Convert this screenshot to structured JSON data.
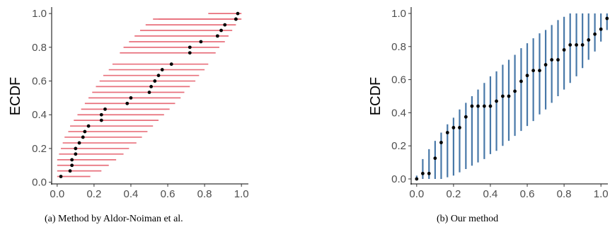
{
  "chart_data": [
    {
      "type": "scatter",
      "variant": "horizontal-intervals",
      "caption": "(a) Method by Aldor-Noiman et al.",
      "xlabel": "",
      "ylabel": "ECDF",
      "xlim": [
        -0.03,
        1.03
      ],
      "ylim": [
        -0.01,
        1.03
      ],
      "xticks": [
        0.0,
        0.2,
        0.4,
        0.6,
        0.8,
        1.0
      ],
      "xtick_labels": [
        "0.0",
        "0.2",
        "0.4",
        "0.6",
        "0.8",
        "1.0"
      ],
      "yticks": [
        0.0,
        0.2,
        0.4,
        0.6,
        0.8,
        1.0
      ],
      "ytick_labels": [
        "0.0",
        "0.2",
        "0.4",
        "0.6",
        "0.8",
        "1.0"
      ],
      "grid": false,
      "legend": "none",
      "interval_color": "#e8707c",
      "point_color": "#000000",
      "points": [
        {
          "x": 0.02,
          "y": 0.034,
          "lo": 0.0,
          "hi": 0.18
        },
        {
          "x": 0.07,
          "y": 0.067,
          "lo": 0.0,
          "hi": 0.24
        },
        {
          "x": 0.08,
          "y": 0.1,
          "lo": 0.0,
          "hi": 0.28
        },
        {
          "x": 0.08,
          "y": 0.133,
          "lo": 0.0,
          "hi": 0.32
        },
        {
          "x": 0.1,
          "y": 0.167,
          "lo": 0.01,
          "hi": 0.36
        },
        {
          "x": 0.1,
          "y": 0.2,
          "lo": 0.02,
          "hi": 0.39
        },
        {
          "x": 0.12,
          "y": 0.233,
          "lo": 0.03,
          "hi": 0.43
        },
        {
          "x": 0.14,
          "y": 0.267,
          "lo": 0.04,
          "hi": 0.46
        },
        {
          "x": 0.15,
          "y": 0.3,
          "lo": 0.06,
          "hi": 0.49
        },
        {
          "x": 0.17,
          "y": 0.333,
          "lo": 0.07,
          "hi": 0.52
        },
        {
          "x": 0.24,
          "y": 0.367,
          "lo": 0.09,
          "hi": 0.55
        },
        {
          "x": 0.24,
          "y": 0.4,
          "lo": 0.11,
          "hi": 0.58
        },
        {
          "x": 0.26,
          "y": 0.433,
          "lo": 0.13,
          "hi": 0.61
        },
        {
          "x": 0.38,
          "y": 0.467,
          "lo": 0.15,
          "hi": 0.64
        },
        {
          "x": 0.4,
          "y": 0.5,
          "lo": 0.17,
          "hi": 0.67
        },
        {
          "x": 0.5,
          "y": 0.533,
          "lo": 0.19,
          "hi": 0.69
        },
        {
          "x": 0.51,
          "y": 0.567,
          "lo": 0.21,
          "hi": 0.72
        },
        {
          "x": 0.53,
          "y": 0.6,
          "lo": 0.23,
          "hi": 0.75
        },
        {
          "x": 0.55,
          "y": 0.633,
          "lo": 0.25,
          "hi": 0.77
        },
        {
          "x": 0.57,
          "y": 0.667,
          "lo": 0.28,
          "hi": 0.8
        },
        {
          "x": 0.62,
          "y": 0.7,
          "lo": 0.3,
          "hi": 0.82
        },
        {
          "x": 0.72,
          "y": 0.8,
          "lo": 0.36,
          "hi": 0.88
        },
        {
          "x": 0.72,
          "y": 0.767,
          "lo": 0.34,
          "hi": 0.86
        },
        {
          "x": 0.78,
          "y": 0.833,
          "lo": 0.39,
          "hi": 0.91
        },
        {
          "x": 0.87,
          "y": 0.867,
          "lo": 0.42,
          "hi": 0.93
        },
        {
          "x": 0.89,
          "y": 0.9,
          "lo": 0.45,
          "hi": 0.95
        },
        {
          "x": 0.91,
          "y": 0.933,
          "lo": 0.48,
          "hi": 0.97
        },
        {
          "x": 0.97,
          "y": 0.967,
          "lo": 0.52,
          "hi": 0.99
        },
        {
          "x": 0.97,
          "y": 0.967,
          "lo": 0.55,
          "hi": 1.0
        },
        {
          "x": 0.98,
          "y": 1.0,
          "lo": 0.82,
          "hi": 1.0
        }
      ]
    },
    {
      "type": "scatter",
      "variant": "vertical-intervals",
      "caption": "(b) Our method",
      "xlabel": "",
      "ylabel": "ECDF",
      "xlim": [
        -0.03,
        1.03
      ],
      "ylim": [
        -0.03,
        1.03
      ],
      "xticks": [
        0.0,
        0.2,
        0.4,
        0.6,
        0.8,
        1.0
      ],
      "xtick_labels": [
        "0.0",
        "0.2",
        "0.4",
        "0.6",
        "0.8",
        "1.0"
      ],
      "yticks": [
        0.0,
        0.2,
        0.4,
        0.6,
        0.8,
        1.0
      ],
      "ytick_labels": [
        "0.0",
        "0.2",
        "0.4",
        "0.6",
        "0.8",
        "1.0"
      ],
      "grid": false,
      "legend": "none",
      "interval_color": "#4878a8",
      "point_color": "#000000",
      "points": [
        {
          "x": 0.0,
          "y": 0.0,
          "lo": 0.0,
          "hi": 0.02
        },
        {
          "x": 0.033,
          "y": 0.033,
          "lo": 0.0,
          "hi": 0.12
        },
        {
          "x": 0.067,
          "y": 0.033,
          "lo": 0.0,
          "hi": 0.18
        },
        {
          "x": 0.1,
          "y": 0.125,
          "lo": 0.0,
          "hi": 0.23
        },
        {
          "x": 0.133,
          "y": 0.22,
          "lo": 0.0,
          "hi": 0.28
        },
        {
          "x": 0.167,
          "y": 0.28,
          "lo": 0.01,
          "hi": 0.33
        },
        {
          "x": 0.2,
          "y": 0.31,
          "lo": 0.02,
          "hi": 0.37
        },
        {
          "x": 0.233,
          "y": 0.31,
          "lo": 0.04,
          "hi": 0.42
        },
        {
          "x": 0.267,
          "y": 0.375,
          "lo": 0.06,
          "hi": 0.46
        },
        {
          "x": 0.3,
          "y": 0.44,
          "lo": 0.08,
          "hi": 0.5
        },
        {
          "x": 0.333,
          "y": 0.44,
          "lo": 0.1,
          "hi": 0.54
        },
        {
          "x": 0.367,
          "y": 0.44,
          "lo": 0.12,
          "hi": 0.58
        },
        {
          "x": 0.4,
          "y": 0.44,
          "lo": 0.15,
          "hi": 0.62
        },
        {
          "x": 0.433,
          "y": 0.47,
          "lo": 0.17,
          "hi": 0.65
        },
        {
          "x": 0.467,
          "y": 0.5,
          "lo": 0.2,
          "hi": 0.69
        },
        {
          "x": 0.5,
          "y": 0.5,
          "lo": 0.23,
          "hi": 0.72
        },
        {
          "x": 0.533,
          "y": 0.53,
          "lo": 0.26,
          "hi": 0.75
        },
        {
          "x": 0.567,
          "y": 0.59,
          "lo": 0.29,
          "hi": 0.79
        },
        {
          "x": 0.6,
          "y": 0.625,
          "lo": 0.32,
          "hi": 0.82
        },
        {
          "x": 0.633,
          "y": 0.655,
          "lo": 0.35,
          "hi": 0.85
        },
        {
          "x": 0.667,
          "y": 0.655,
          "lo": 0.39,
          "hi": 0.88
        },
        {
          "x": 0.7,
          "y": 0.69,
          "lo": 0.42,
          "hi": 0.9
        },
        {
          "x": 0.733,
          "y": 0.72,
          "lo": 0.46,
          "hi": 0.93
        },
        {
          "x": 0.767,
          "y": 0.72,
          "lo": 0.5,
          "hi": 0.96
        },
        {
          "x": 0.8,
          "y": 0.78,
          "lo": 0.54,
          "hi": 0.98
        },
        {
          "x": 0.833,
          "y": 0.81,
          "lo": 0.58,
          "hi": 1.0
        },
        {
          "x": 0.867,
          "y": 0.81,
          "lo": 0.62,
          "hi": 1.0
        },
        {
          "x": 0.9,
          "y": 0.81,
          "lo": 0.67,
          "hi": 1.0
        },
        {
          "x": 0.933,
          "y": 0.84,
          "lo": 0.72,
          "hi": 1.0
        },
        {
          "x": 0.967,
          "y": 0.875,
          "lo": 0.77,
          "hi": 1.0
        },
        {
          "x": 1.0,
          "y": 0.905,
          "lo": 0.83,
          "hi": 1.0
        },
        {
          "x": 1.033,
          "y": 0.97,
          "lo": 0.9,
          "hi": 1.0
        },
        {
          "x": 1.067,
          "y": 1.0,
          "lo": 0.97,
          "hi": 1.0
        }
      ]
    }
  ]
}
